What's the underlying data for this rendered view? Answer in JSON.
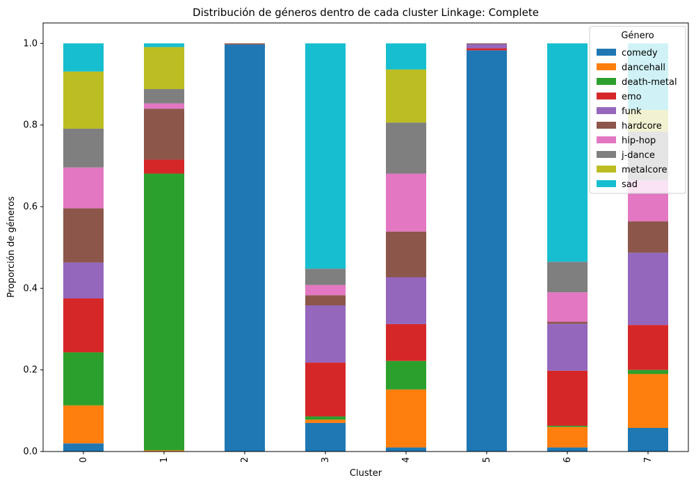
{
  "chart_data": {
    "type": "bar",
    "stacked": true,
    "title": "Distribución de géneros dentro de cada cluster Linkage: Complete",
    "xlabel": "Cluster",
    "ylabel": "Proporción de géneros",
    "ylim": [
      0,
      1.05
    ],
    "yticks": [
      "0.0",
      "0.2",
      "0.4",
      "0.6",
      "0.8",
      "1.0"
    ],
    "grid": false,
    "categories": [
      "0",
      "1",
      "2",
      "3",
      "4",
      "5",
      "6",
      "7"
    ],
    "legend": {
      "title": "Género",
      "placement": "top-right"
    },
    "series": [
      {
        "name": "comedy",
        "color": "#1f77b4",
        "values": [
          0.02,
          0.0,
          0.997,
          0.07,
          0.01,
          0.983,
          0.01,
          0.058
        ]
      },
      {
        "name": "dancehall",
        "color": "#ff7f0e",
        "values": [
          0.093,
          0.003,
          0.0,
          0.008,
          0.142,
          0.0,
          0.05,
          0.132
        ]
      },
      {
        "name": "death-metal",
        "color": "#2ca02c",
        "values": [
          0.13,
          0.678,
          0.0,
          0.008,
          0.07,
          0.0,
          0.003,
          0.01
        ]
      },
      {
        "name": "emo",
        "color": "#d62728",
        "values": [
          0.132,
          0.034,
          0.0,
          0.132,
          0.09,
          0.005,
          0.135,
          0.11
        ]
      },
      {
        "name": "funk",
        "color": "#9467bd",
        "values": [
          0.088,
          0.0,
          0.0,
          0.14,
          0.115,
          0.01,
          0.115,
          0.177
        ]
      },
      {
        "name": "hardcore",
        "color": "#8c564b",
        "values": [
          0.133,
          0.125,
          0.003,
          0.025,
          0.112,
          0.002,
          0.005,
          0.077
        ]
      },
      {
        "name": "hip-hop",
        "color": "#e377c2",
        "values": [
          0.1,
          0.013,
          0.0,
          0.025,
          0.142,
          0.0,
          0.072,
          0.1
        ]
      },
      {
        "name": "j-dance",
        "color": "#7f7f7f",
        "values": [
          0.095,
          0.035,
          0.0,
          0.04,
          0.125,
          0.0,
          0.075,
          0.12
        ]
      },
      {
        "name": "metalcore",
        "color": "#bcbd22",
        "values": [
          0.14,
          0.103,
          0.0,
          0.0,
          0.13,
          0.0,
          0.0,
          0.053
        ]
      },
      {
        "name": "sad",
        "color": "#17becf",
        "values": [
          0.069,
          0.009,
          0.0,
          0.552,
          0.064,
          0.0,
          0.535,
          0.163
        ]
      }
    ]
  }
}
